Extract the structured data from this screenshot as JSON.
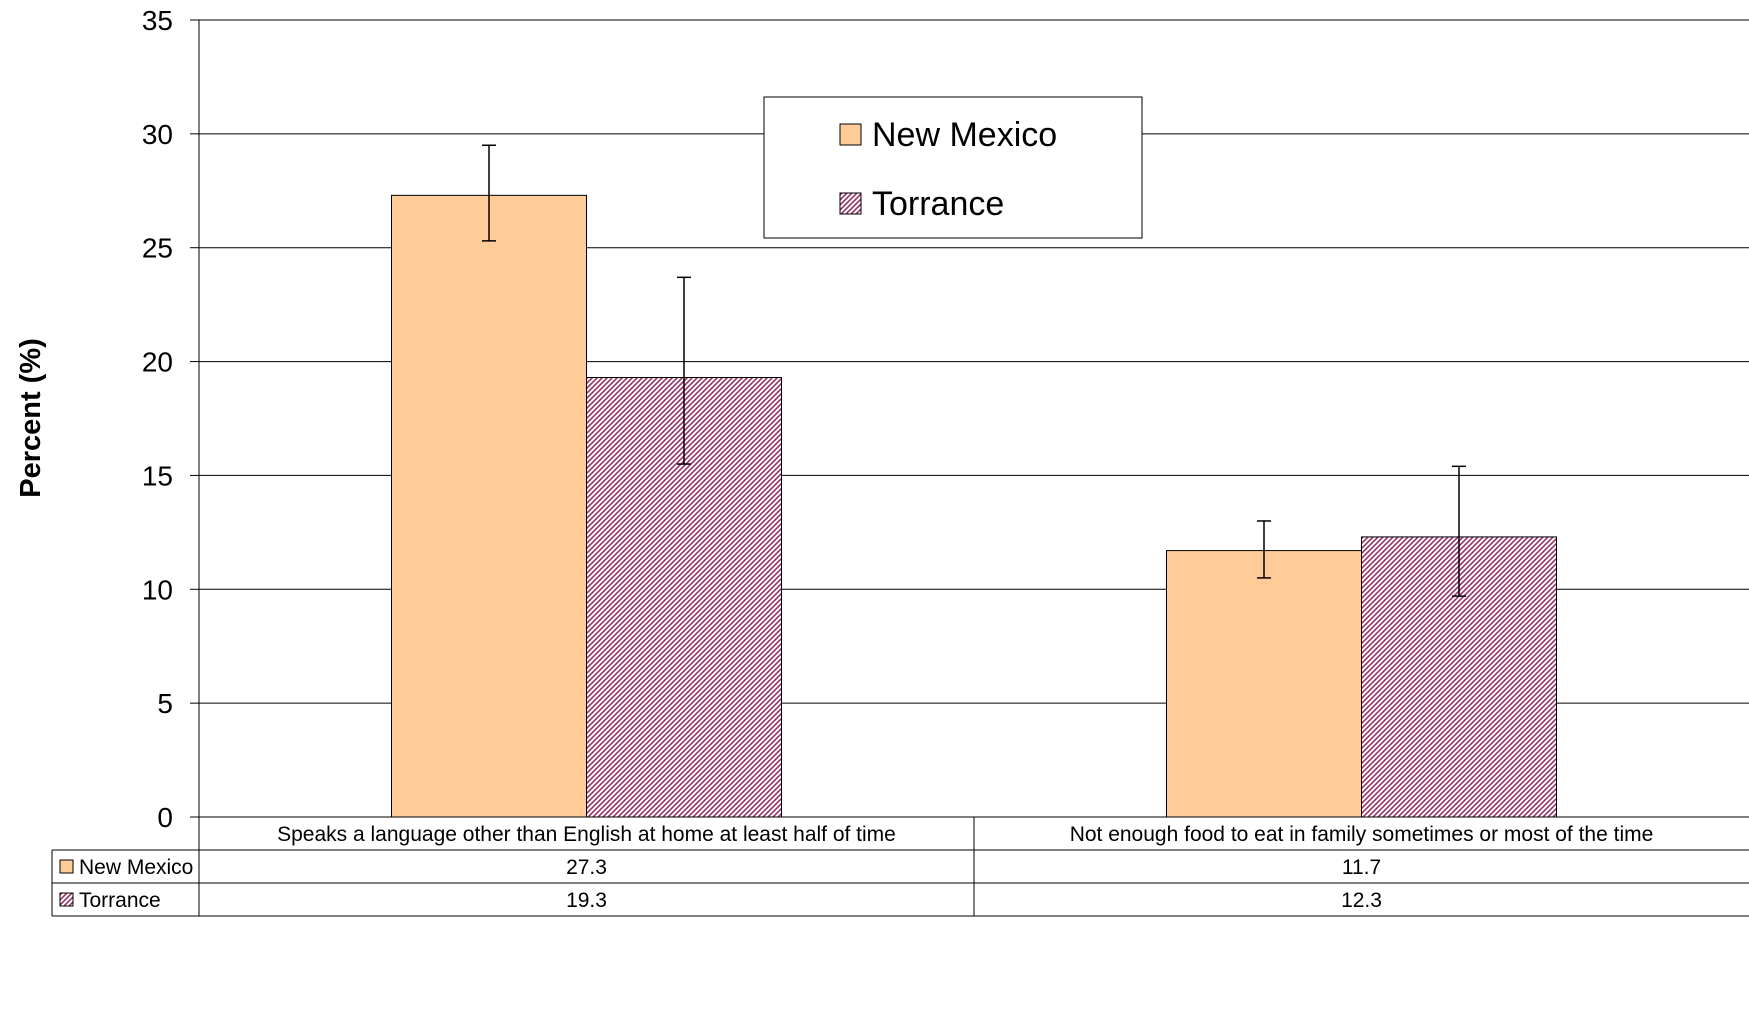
{
  "chart_data": {
    "type": "bar",
    "title": "",
    "xlabel": "",
    "ylabel": "Percent (%)",
    "ylim": [
      0,
      35
    ],
    "yticks": [
      0,
      5,
      10,
      15,
      20,
      25,
      30,
      35
    ],
    "grid": true,
    "legend_position": "top-center",
    "categories": [
      "Speaks a language other than English at home at least half of time",
      "Not enough food to eat in family sometimes or most of the time"
    ],
    "series": [
      {
        "name": "New Mexico",
        "color": "#FFCC99",
        "pattern": "solid",
        "values": [
          27.3,
          11.7
        ],
        "value_labels": [
          "27.3",
          "11.7"
        ],
        "error_low": [
          25.3,
          10.5
        ],
        "error_high": [
          29.5,
          13.0
        ]
      },
      {
        "name": "Torrance",
        "color": "#993366",
        "pattern": "diagonal-hatch",
        "values": [
          19.3,
          12.3
        ],
        "value_labels": [
          "19.3",
          "12.3"
        ],
        "error_low": [
          15.5,
          9.7
        ],
        "error_high": [
          23.7,
          15.4
        ]
      }
    ]
  }
}
